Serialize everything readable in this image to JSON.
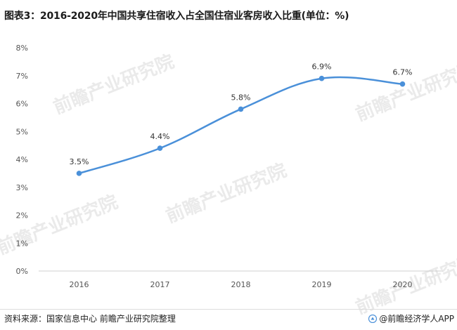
{
  "title": "图表3：2016-2020年中国共享住宿收入占全国住宿业客房收入比重(单位：%)",
  "source": "资料来源：国家信息中心 前瞻产业研究院整理",
  "brand": "@前瞻经济学人APP",
  "watermark": "前瞻产业研究院",
  "colors": {
    "line": "#4a90d9",
    "axis": "#cfcfcf",
    "text": "#555555"
  },
  "chart_data": {
    "type": "line",
    "categories": [
      "2016",
      "2017",
      "2018",
      "2019",
      "2020"
    ],
    "series": [
      {
        "values": [
          3.5,
          4.4,
          5.8,
          6.9,
          6.7
        ],
        "labels": [
          "3.5%",
          "4.4%",
          "5.8%",
          "6.9%",
          "6.7%"
        ]
      }
    ],
    "yticks": [
      "0%",
      "1%",
      "2%",
      "3%",
      "4%",
      "5%",
      "6%",
      "7%",
      "8%"
    ],
    "ylim": [
      0,
      8
    ],
    "grid": false,
    "smooth": true
  }
}
